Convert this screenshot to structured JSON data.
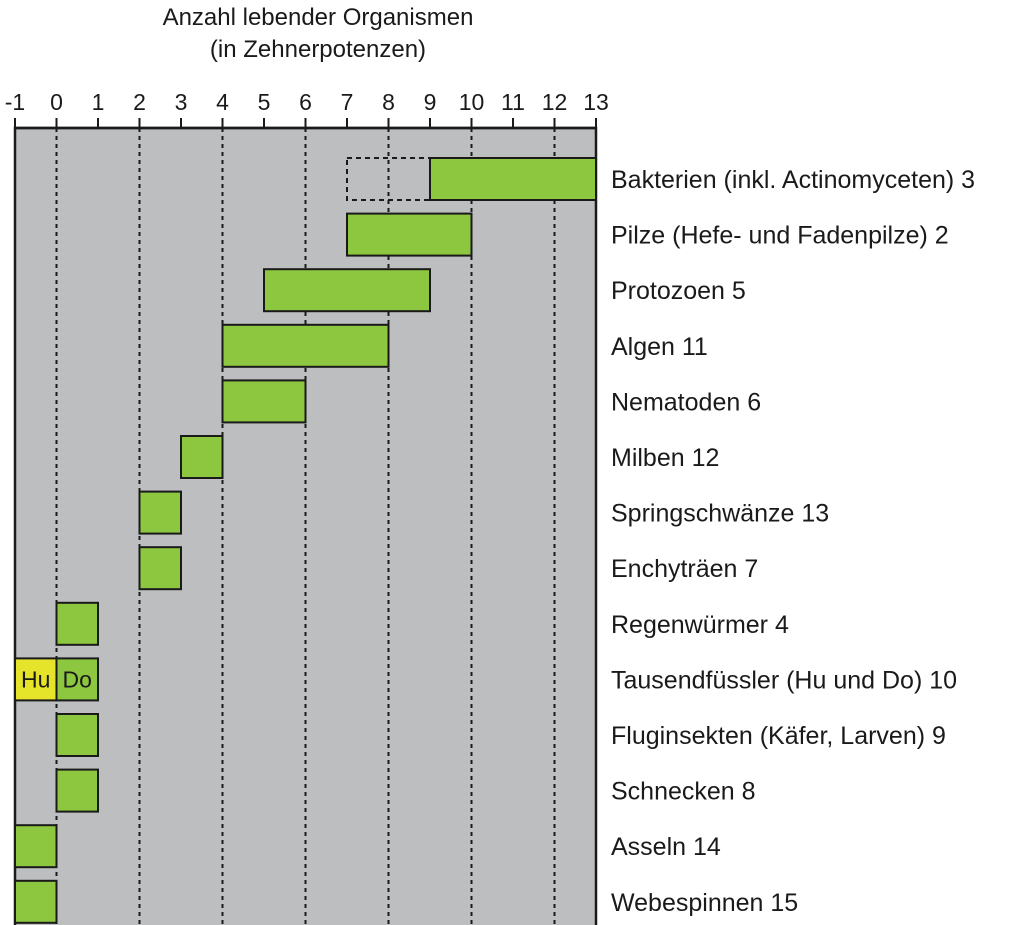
{
  "chart_data": {
    "type": "bar",
    "orientation": "horizontal",
    "title_lines": [
      "Anzahl lebender Organismen",
      "(in Zehnerpotenzen)"
    ],
    "x_ticks": [
      {
        "value": -1,
        "label": "-1"
      },
      {
        "value": 0,
        "label": "0"
      },
      {
        "value": 1,
        "label": "1"
      },
      {
        "value": 2,
        "label": "2"
      },
      {
        "value": 3,
        "label": "3"
      },
      {
        "value": 4,
        "label": "4"
      },
      {
        "value": 5,
        "label": "5"
      },
      {
        "value": 6,
        "label": "6"
      },
      {
        "value": 7,
        "label": "7"
      },
      {
        "value": 8,
        "label": "8"
      },
      {
        "value": 9,
        "label": "9"
      },
      {
        "value": 10,
        "label": "10"
      },
      {
        "value": 11,
        "label": "11"
      },
      {
        "value": 12,
        "label": "12"
      },
      {
        "value": 13,
        "label": "13"
      }
    ],
    "xlim": [
      -1,
      13
    ],
    "dashed_gridlines_at": [
      0,
      2,
      4,
      6,
      8,
      10,
      12
    ],
    "grid": true,
    "colors": {
      "plot_background": "#bcbec0",
      "bar_fill": "#8dc63f",
      "bar_fill_yellow": "#e6e32b",
      "bar_stroke": "#1a1a1a",
      "text": "#1a1a1a"
    },
    "categories": [
      "Bakterien (inkl. Actinomyceten)",
      "Pilze (Hefe- und Fadenpilze)",
      "Protozoen",
      "Algen",
      "Nematoden",
      "Milben",
      "Springschwänze",
      "Enchyträen",
      "Regenwürmer",
      "Tausendfüssler (Hu und Do)",
      "Fluginsekten (Käfer, Larven)",
      "Schnecken",
      "Asseln",
      "Webespinnen"
    ],
    "category_numbers": [
      "3",
      "2",
      "5",
      "11",
      "6",
      "12",
      "13",
      "7",
      "4",
      "10",
      "9",
      "8",
      "14",
      "15"
    ],
    "ranges": [
      {
        "min": 9,
        "max": 13,
        "dashed_extension_min": 7
      },
      {
        "min": 7,
        "max": 10
      },
      {
        "min": 5,
        "max": 9
      },
      {
        "min": 4,
        "max": 8
      },
      {
        "min": 4,
        "max": 6
      },
      {
        "min": 3,
        "max": 4
      },
      {
        "min": 2,
        "max": 3
      },
      {
        "min": 2,
        "max": 3
      },
      {
        "min": 0,
        "max": 1
      },
      {
        "min": -1,
        "max": 1,
        "segments": [
          {
            "min": -1,
            "max": 0,
            "label": "Hu",
            "color": "yellow"
          },
          {
            "min": 0,
            "max": 1,
            "label": "Do",
            "color": "green"
          }
        ]
      },
      {
        "min": 0,
        "max": 1
      },
      {
        "min": 0,
        "max": 1
      },
      {
        "min": -1,
        "max": 0
      },
      {
        "min": -1,
        "max": 0
      }
    ]
  }
}
